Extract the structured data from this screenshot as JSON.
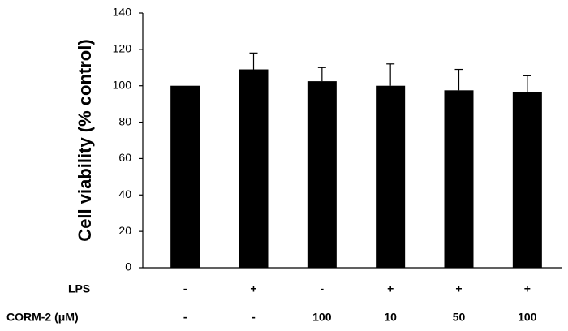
{
  "chart_data": {
    "type": "bar",
    "y_label": "Cell viability (% control)",
    "row_labels": [
      "LPS",
      "CORM-2 (μM)"
    ],
    "category_rows": [
      [
        "-",
        "+",
        "-",
        "+",
        "+",
        "+"
      ],
      [
        "-",
        "-",
        "100",
        "10",
        "50",
        "100"
      ]
    ],
    "values": [
      100,
      109,
      102.5,
      100,
      97.5,
      96.5
    ],
    "errors": [
      0,
      9,
      7.5,
      12,
      11.5,
      9
    ],
    "color": "#000000",
    "ylim": [
      0,
      140
    ],
    "yticks": [
      0,
      20,
      40,
      60,
      80,
      100,
      120,
      140
    ]
  }
}
